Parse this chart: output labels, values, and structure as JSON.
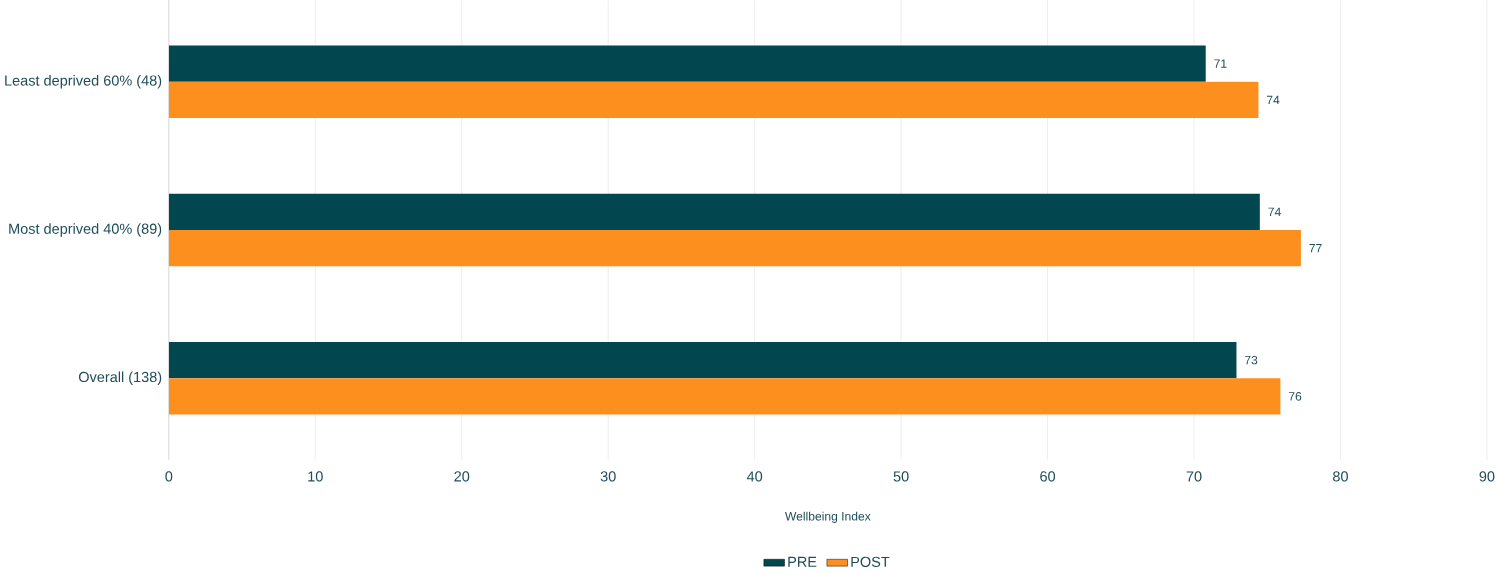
{
  "chart_data": {
    "type": "bar",
    "orientation": "horizontal",
    "xlabel": "Wellbeing Index",
    "categories": [
      "Least deprived 60% (48)",
      "Most deprived 40% (89)",
      "Overall (138)"
    ],
    "series": [
      {
        "name": "PRE",
        "color": "#02474f",
        "values": [
          70.8,
          74.5,
          72.9
        ],
        "value_labels": [
          "71",
          "74",
          "73"
        ]
      },
      {
        "name": "POST",
        "color": "#fd8f1e",
        "values": [
          74.4,
          77.3,
          75.9
        ],
        "value_labels": [
          "74",
          "77",
          "76"
        ]
      }
    ],
    "xlim": [
      0,
      90
    ],
    "xticks": [
      0,
      10,
      20,
      30,
      40,
      50,
      60,
      70,
      80,
      90
    ],
    "grid": "x",
    "legend": "bottom"
  }
}
